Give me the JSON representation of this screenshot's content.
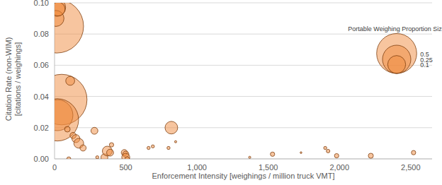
{
  "chart_data": {
    "type": "scatter",
    "xlabel": "Enforcement Intensity [weighings / million truck VMT]",
    "ylabel": [
      "Citation Rate (non-WIM)",
      "[citations / weighings]"
    ],
    "x": [
      15,
      15,
      10,
      25,
      50,
      20,
      20,
      110,
      90,
      130,
      150,
      170,
      200,
      280,
      100,
      300,
      350,
      370,
      390,
      400,
      490,
      500,
      500,
      510,
      660,
      690,
      820,
      800,
      850,
      1370,
      1530,
      1730,
      1900,
      1920,
      1980,
      2220,
      2520
    ],
    "values": [
      0.085,
      0.097,
      0.09,
      0.096,
      0.038,
      0.028,
      0.025,
      0.05,
      0.019,
      0.015,
      0.013,
      0.01,
      0.007,
      0.018,
      0.0,
      0.001,
      0.001,
      0.005,
      0.004,
      0.009,
      0.004,
      0.003,
      0.001,
      0.0,
      0.007,
      0.008,
      0.02,
      0.007,
      0.011,
      0.001,
      0.003,
      0.004,
      0.007,
      0.005,
      0.002,
      0.002,
      0.004
    ],
    "sizes": [
      0.9,
      0.1,
      0.08,
      0.06,
      0.8,
      0.3,
      0.56,
      0.025,
      0.01,
      0.012,
      0.02,
      0.03,
      0.012,
      0.015,
      0.005,
      0.003,
      0.015,
      0.03,
      0.015,
      0.006,
      0.012,
      0.012,
      0.02,
      0.006,
      0.003,
      0.003,
      0.05,
      0.003,
      0.0015,
      0.0015,
      0.006,
      0.001,
      0.003,
      0.004,
      0.006,
      0.008,
      0.006
    ],
    "color": "#f08c40",
    "xlim": [
      0,
      2650
    ],
    "xticks": [
      0,
      500,
      {
        "value": 1000,
        "label": "1,000"
      },
      {
        "value": 1500,
        "label": "1,500"
      },
      {
        "value": 2000,
        "label": "2,000"
      },
      {
        "value": 2500,
        "label": "2,500"
      }
    ],
    "ylim": [
      0,
      0.1
    ],
    "yticks": [
      {
        "value": 0,
        "label": "0.00"
      },
      {
        "value": 0.02,
        "label": "0.02"
      },
      {
        "value": 0.04,
        "label": "0.04"
      },
      {
        "value": 0.06,
        "label": "0.06"
      },
      {
        "value": 0.08,
        "label": "0.08"
      },
      {
        "value": 0.1,
        "label": "0.10"
      }
    ],
    "grid": true,
    "size_legend": {
      "title": "Portable Weighing Proportion Size",
      "values": [
        0.5,
        0.25,
        0.1
      ]
    }
  }
}
